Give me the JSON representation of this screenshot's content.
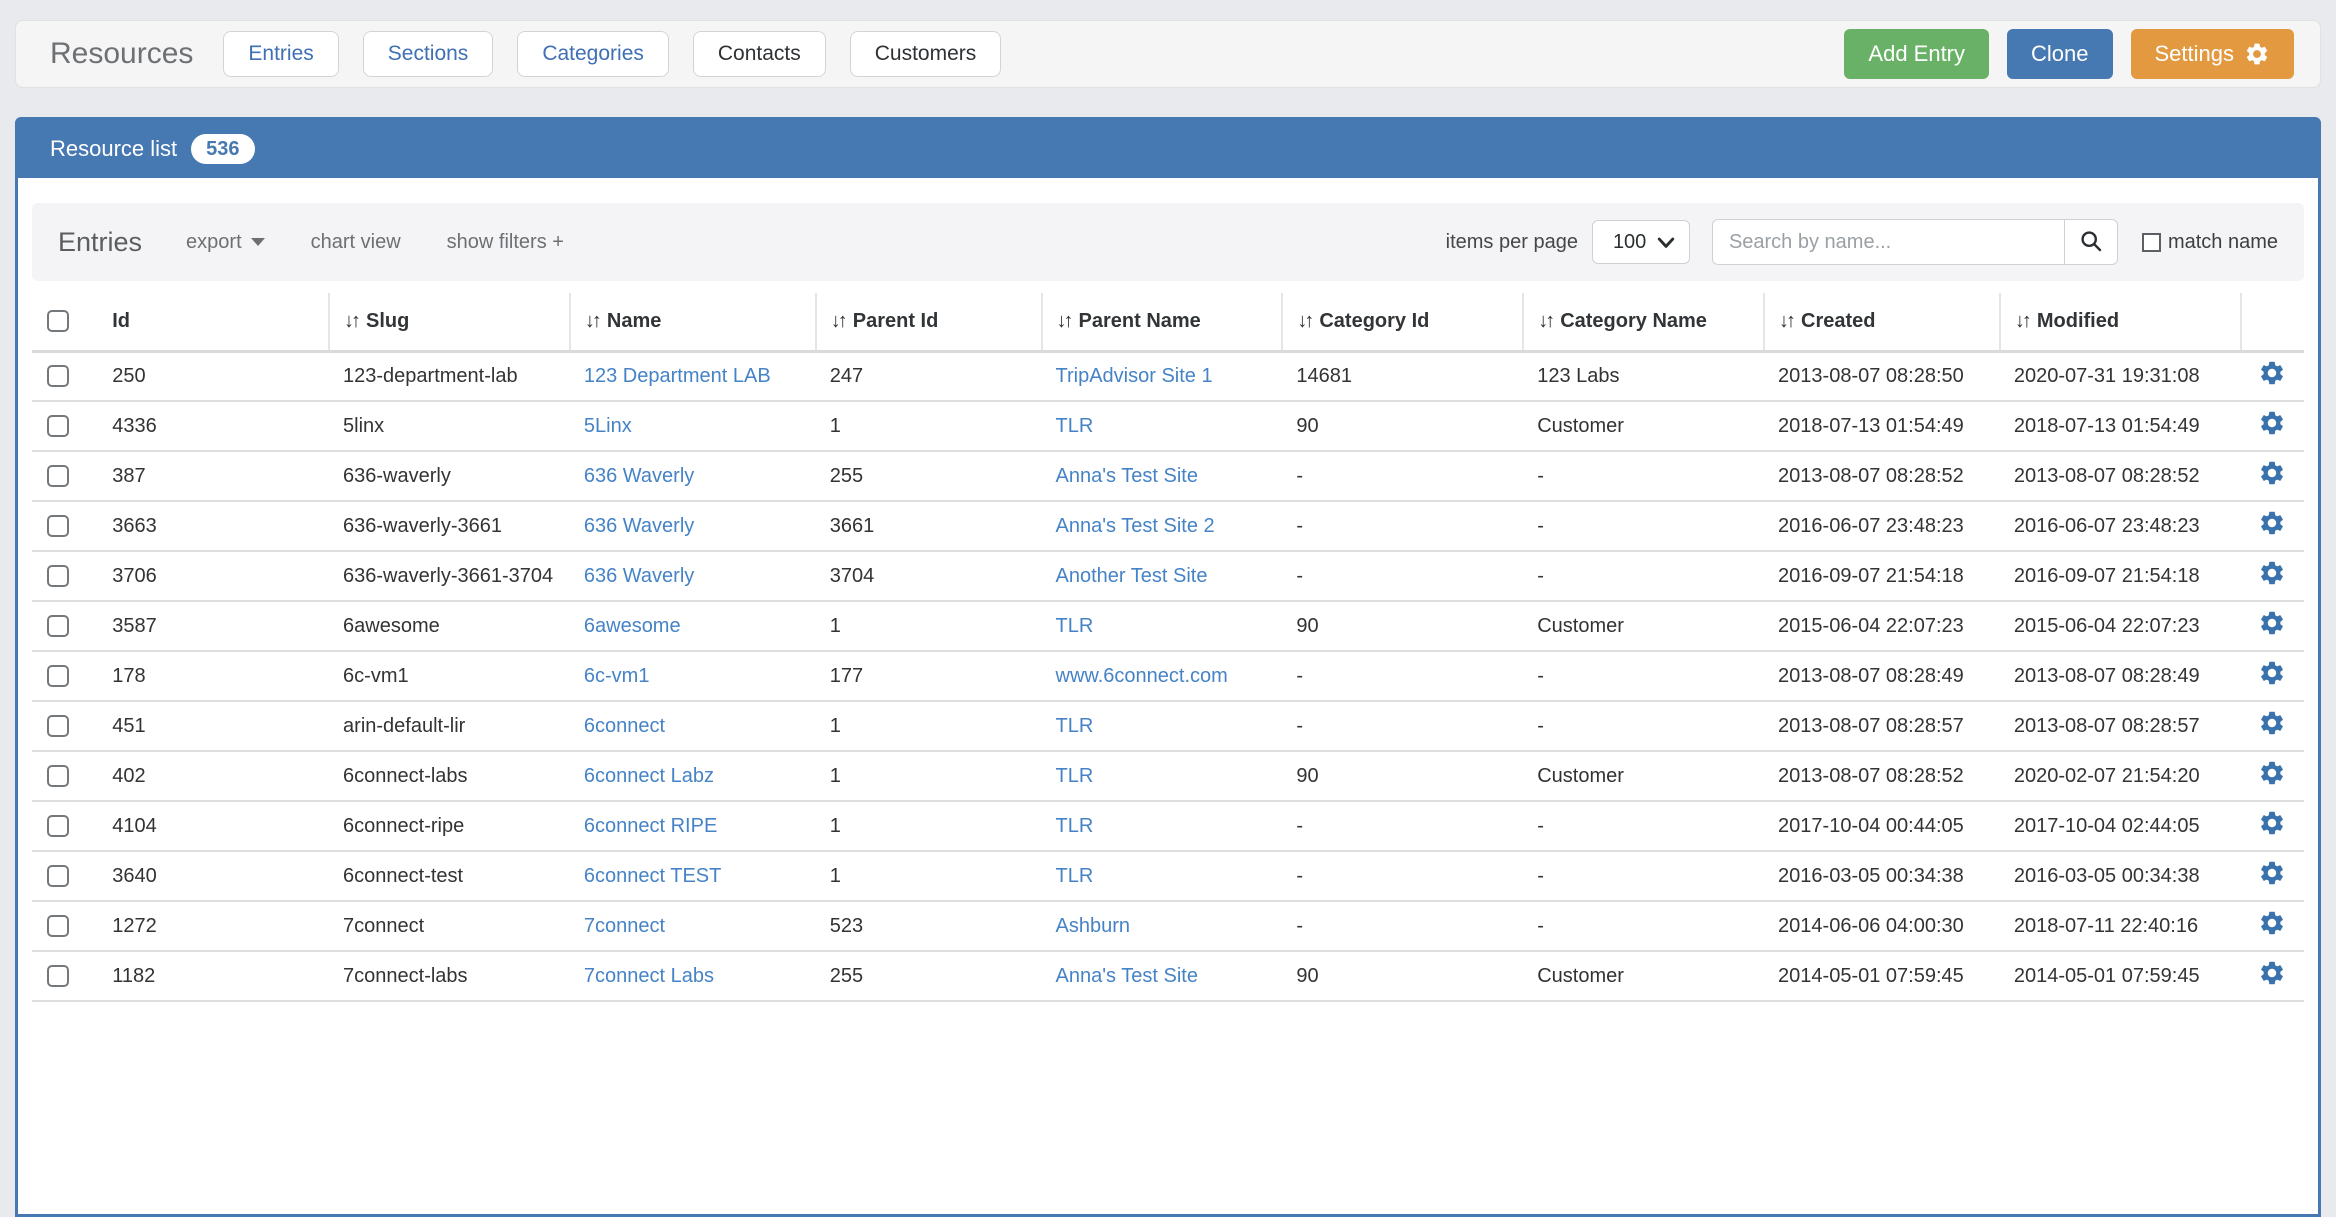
{
  "header": {
    "title": "Resources",
    "nav_buttons": [
      {
        "label": "Entries",
        "style": "link"
      },
      {
        "label": "Sections",
        "style": "link"
      },
      {
        "label": "Categories",
        "style": "link"
      },
      {
        "label": "Contacts",
        "style": "default"
      },
      {
        "label": "Customers",
        "style": "default"
      }
    ],
    "action_buttons": [
      {
        "label": "Add Entry",
        "color": "#6ab168",
        "icon": null
      },
      {
        "label": "Clone",
        "color": "#4678b2",
        "icon": null
      },
      {
        "label": "Settings",
        "color": "#e2993f",
        "icon": "gear-icon"
      }
    ]
  },
  "panel": {
    "title": "Resource list",
    "badge_count": "536",
    "accent_color": "#4678b2"
  },
  "toolbar": {
    "heading": "Entries",
    "export_label": "export",
    "chart_view_label": "chart view",
    "show_filters_label": "show filters +",
    "items_per_page_label": "items per page",
    "items_per_page_value": "100",
    "search_placeholder": "Search by name...",
    "match_name_label": "match name"
  },
  "table": {
    "columns": [
      {
        "label": "Id",
        "key": "id",
        "sortable": false,
        "link": false
      },
      {
        "label": "Slug",
        "key": "slug",
        "sortable": true,
        "link": false
      },
      {
        "label": "Name",
        "key": "name",
        "sortable": true,
        "link": true
      },
      {
        "label": "Parent Id",
        "key": "parent_id",
        "sortable": true,
        "link": false
      },
      {
        "label": "Parent Name",
        "key": "parent_name",
        "sortable": true,
        "link": true
      },
      {
        "label": "Category Id",
        "key": "category_id",
        "sortable": true,
        "link": false
      },
      {
        "label": "Category Name",
        "key": "category_name",
        "sortable": true,
        "link": false
      },
      {
        "label": "Created",
        "key": "created",
        "sortable": true,
        "link": false
      },
      {
        "label": "Modified",
        "key": "modified",
        "sortable": true,
        "link": false
      }
    ],
    "rows": [
      {
        "id": "250",
        "slug": "123-department-lab",
        "name": "123 Department LAB",
        "parent_id": "247",
        "parent_name": "TripAdvisor Site 1",
        "category_id": "14681",
        "category_name": "123 Labs",
        "created": "2013-08-07 08:28:50",
        "modified": "2020-07-31 19:31:08"
      },
      {
        "id": "4336",
        "slug": "5linx",
        "name": "5Linx",
        "parent_id": "1",
        "parent_name": "TLR",
        "category_id": "90",
        "category_name": "Customer",
        "created": "2018-07-13 01:54:49",
        "modified": "2018-07-13 01:54:49"
      },
      {
        "id": "387",
        "slug": "636-waverly",
        "name": "636 Waverly",
        "parent_id": "255",
        "parent_name": "Anna's Test Site",
        "category_id": "-",
        "category_name": "-",
        "created": "2013-08-07 08:28:52",
        "modified": "2013-08-07 08:28:52"
      },
      {
        "id": "3663",
        "slug": "636-waverly-3661",
        "name": "636 Waverly",
        "parent_id": "3661",
        "parent_name": "Anna's Test Site 2",
        "category_id": "-",
        "category_name": "-",
        "created": "2016-06-07 23:48:23",
        "modified": "2016-06-07 23:48:23"
      },
      {
        "id": "3706",
        "slug": "636-waverly-3661-3704",
        "name": "636 Waverly",
        "parent_id": "3704",
        "parent_name": "Another Test Site",
        "category_id": "-",
        "category_name": "-",
        "created": "2016-09-07 21:54:18",
        "modified": "2016-09-07 21:54:18"
      },
      {
        "id": "3587",
        "slug": "6awesome",
        "name": "6awesome",
        "parent_id": "1",
        "parent_name": "TLR",
        "category_id": "90",
        "category_name": "Customer",
        "created": "2015-06-04 22:07:23",
        "modified": "2015-06-04 22:07:23"
      },
      {
        "id": "178",
        "slug": "6c-vm1",
        "name": "6c-vm1",
        "parent_id": "177",
        "parent_name": "www.6connect.com",
        "category_id": "-",
        "category_name": "-",
        "created": "2013-08-07 08:28:49",
        "modified": "2013-08-07 08:28:49"
      },
      {
        "id": "451",
        "slug": "arin-default-lir",
        "name": "6connect",
        "parent_id": "1",
        "parent_name": "TLR",
        "category_id": "-",
        "category_name": "-",
        "created": "2013-08-07 08:28:57",
        "modified": "2013-08-07 08:28:57"
      },
      {
        "id": "402",
        "slug": "6connect-labs",
        "name": "6connect Labz",
        "parent_id": "1",
        "parent_name": "TLR",
        "category_id": "90",
        "category_name": "Customer",
        "created": "2013-08-07 08:28:52",
        "modified": "2020-02-07 21:54:20"
      },
      {
        "id": "4104",
        "slug": "6connect-ripe",
        "name": "6connect RIPE",
        "parent_id": "1",
        "parent_name": "TLR",
        "category_id": "-",
        "category_name": "-",
        "created": "2017-10-04 00:44:05",
        "modified": "2017-10-04 02:44:05"
      },
      {
        "id": "3640",
        "slug": "6connect-test",
        "name": "6connect TEST",
        "parent_id": "1",
        "parent_name": "TLR",
        "category_id": "-",
        "category_name": "-",
        "created": "2016-03-05 00:34:38",
        "modified": "2016-03-05 00:34:38"
      },
      {
        "id": "1272",
        "slug": "7connect",
        "name": "7connect",
        "parent_id": "523",
        "parent_name": "Ashburn",
        "category_id": "-",
        "category_name": "-",
        "created": "2014-06-06 04:00:30",
        "modified": "2018-07-11 22:40:16"
      },
      {
        "id": "1182",
        "slug": "7connect-labs",
        "name": "7connect Labs",
        "parent_id": "255",
        "parent_name": "Anna's Test Site",
        "category_id": "90",
        "category_name": "Customer",
        "created": "2014-05-01 07:59:45",
        "modified": "2014-05-01 07:59:45"
      }
    ]
  },
  "colors": {
    "page_bg": "#e8eaed",
    "panel_accent": "#4678b2",
    "link": "#4583c6",
    "add_entry_green": "#6ab168",
    "clone_blue": "#4678b2",
    "settings_orange": "#e2993f",
    "row_gear_blue": "#3a72ad"
  }
}
